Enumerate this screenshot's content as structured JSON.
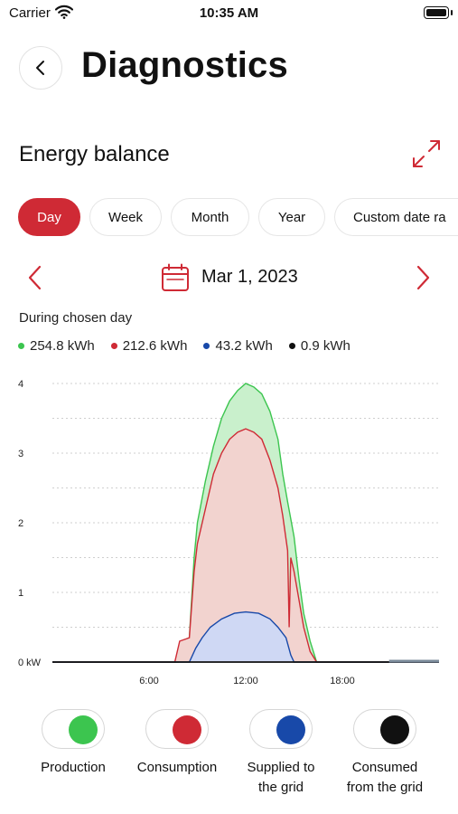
{
  "status_bar": {
    "carrier": "Carrier",
    "time": "10:35 AM"
  },
  "header": {
    "title": "Diagnostics"
  },
  "section": {
    "title": "Energy balance"
  },
  "tabs": [
    {
      "label": "Day",
      "active": true
    },
    {
      "label": "Week",
      "active": false
    },
    {
      "label": "Month",
      "active": false
    },
    {
      "label": "Year",
      "active": false
    },
    {
      "label": "Custom date ra",
      "active": false
    }
  ],
  "date": {
    "label": "Mar 1, 2023"
  },
  "summary": {
    "caption": "During chosen day",
    "values": [
      {
        "value": "254.8 kWh",
        "color": "#3cc54f"
      },
      {
        "value": "212.6 kWh",
        "color": "#cf2a35"
      },
      {
        "value": "43.2 kWh",
        "color": "#1849a9"
      },
      {
        "value": "0.9 kWh",
        "color": "#111111"
      }
    ]
  },
  "chart_data": {
    "type": "area",
    "y_ticks": [
      "0 kW",
      "1",
      "2",
      "3",
      "4"
    ],
    "x_ticks": [
      {
        "label": "6:00",
        "hour": 6
      },
      {
        "label": "12:00",
        "hour": 12
      },
      {
        "label": "18:00",
        "hour": 18
      }
    ],
    "ylim": [
      0,
      4
    ],
    "xlim": [
      0,
      24
    ],
    "grid": true,
    "series": [
      {
        "color": "#3cc54f",
        "fill": "#c9f0cc",
        "points": [
          [
            0,
            0
          ],
          [
            7.8,
            0
          ],
          [
            8.0,
            0.3
          ],
          [
            8.5,
            0.35
          ],
          [
            8.8,
            1.5
          ],
          [
            9.0,
            2.0
          ],
          [
            9.5,
            2.6
          ],
          [
            10.0,
            3.1
          ],
          [
            10.5,
            3.5
          ],
          [
            11.0,
            3.75
          ],
          [
            11.5,
            3.9
          ],
          [
            12.0,
            4.0
          ],
          [
            12.5,
            3.95
          ],
          [
            13.0,
            3.85
          ],
          [
            13.5,
            3.6
          ],
          [
            14.0,
            3.2
          ],
          [
            14.3,
            2.7
          ],
          [
            14.6,
            2.3
          ],
          [
            15.0,
            1.8
          ],
          [
            15.3,
            1.2
          ],
          [
            15.6,
            0.7
          ],
          [
            16.0,
            0.3
          ],
          [
            16.4,
            0.0
          ],
          [
            24,
            0
          ]
        ]
      },
      {
        "color": "#cf2a35",
        "fill": "#f2d3cf",
        "points": [
          [
            0,
            0
          ],
          [
            7.6,
            0
          ],
          [
            7.9,
            0.3
          ],
          [
            8.5,
            0.35
          ],
          [
            8.8,
            1.3
          ],
          [
            9.0,
            1.7
          ],
          [
            9.5,
            2.2
          ],
          [
            10.0,
            2.7
          ],
          [
            10.5,
            3.0
          ],
          [
            11.0,
            3.2
          ],
          [
            11.5,
            3.3
          ],
          [
            12.0,
            3.35
          ],
          [
            12.5,
            3.3
          ],
          [
            13.0,
            3.2
          ],
          [
            13.5,
            2.9
          ],
          [
            14.0,
            2.5
          ],
          [
            14.3,
            2.1
          ],
          [
            14.6,
            1.6
          ],
          [
            14.7,
            0.5
          ],
          [
            14.8,
            1.5
          ],
          [
            15.0,
            1.3
          ],
          [
            15.3,
            0.9
          ],
          [
            15.6,
            0.5
          ],
          [
            16.0,
            0.15
          ],
          [
            16.4,
            0.0
          ],
          [
            24,
            0
          ]
        ]
      },
      {
        "color": "#1849a9",
        "fill": "#cfd8f4",
        "points": [
          [
            0,
            0
          ],
          [
            8.5,
            0
          ],
          [
            8.9,
            0.2
          ],
          [
            9.3,
            0.35
          ],
          [
            9.8,
            0.5
          ],
          [
            10.5,
            0.62
          ],
          [
            11.3,
            0.7
          ],
          [
            12.0,
            0.72
          ],
          [
            12.8,
            0.7
          ],
          [
            13.5,
            0.62
          ],
          [
            14.0,
            0.5
          ],
          [
            14.5,
            0.35
          ],
          [
            14.8,
            0.1
          ],
          [
            15.0,
            0.0
          ],
          [
            24,
            0
          ]
        ]
      },
      {
        "color": "#111111",
        "fill": "none",
        "points": [
          [
            0,
            0
          ],
          [
            24,
            0
          ]
        ]
      }
    ]
  },
  "toggles": [
    {
      "label_line1": "Production",
      "label_line2": "",
      "color": "#3cc54f"
    },
    {
      "label_line1": "Consumption",
      "label_line2": "",
      "color": "#cf2a35"
    },
    {
      "label_line1": "Supplied to",
      "label_line2": "the grid",
      "color": "#1849a9"
    },
    {
      "label_line1": "Consumed",
      "label_line2": "from the grid",
      "color": "#111111"
    }
  ]
}
